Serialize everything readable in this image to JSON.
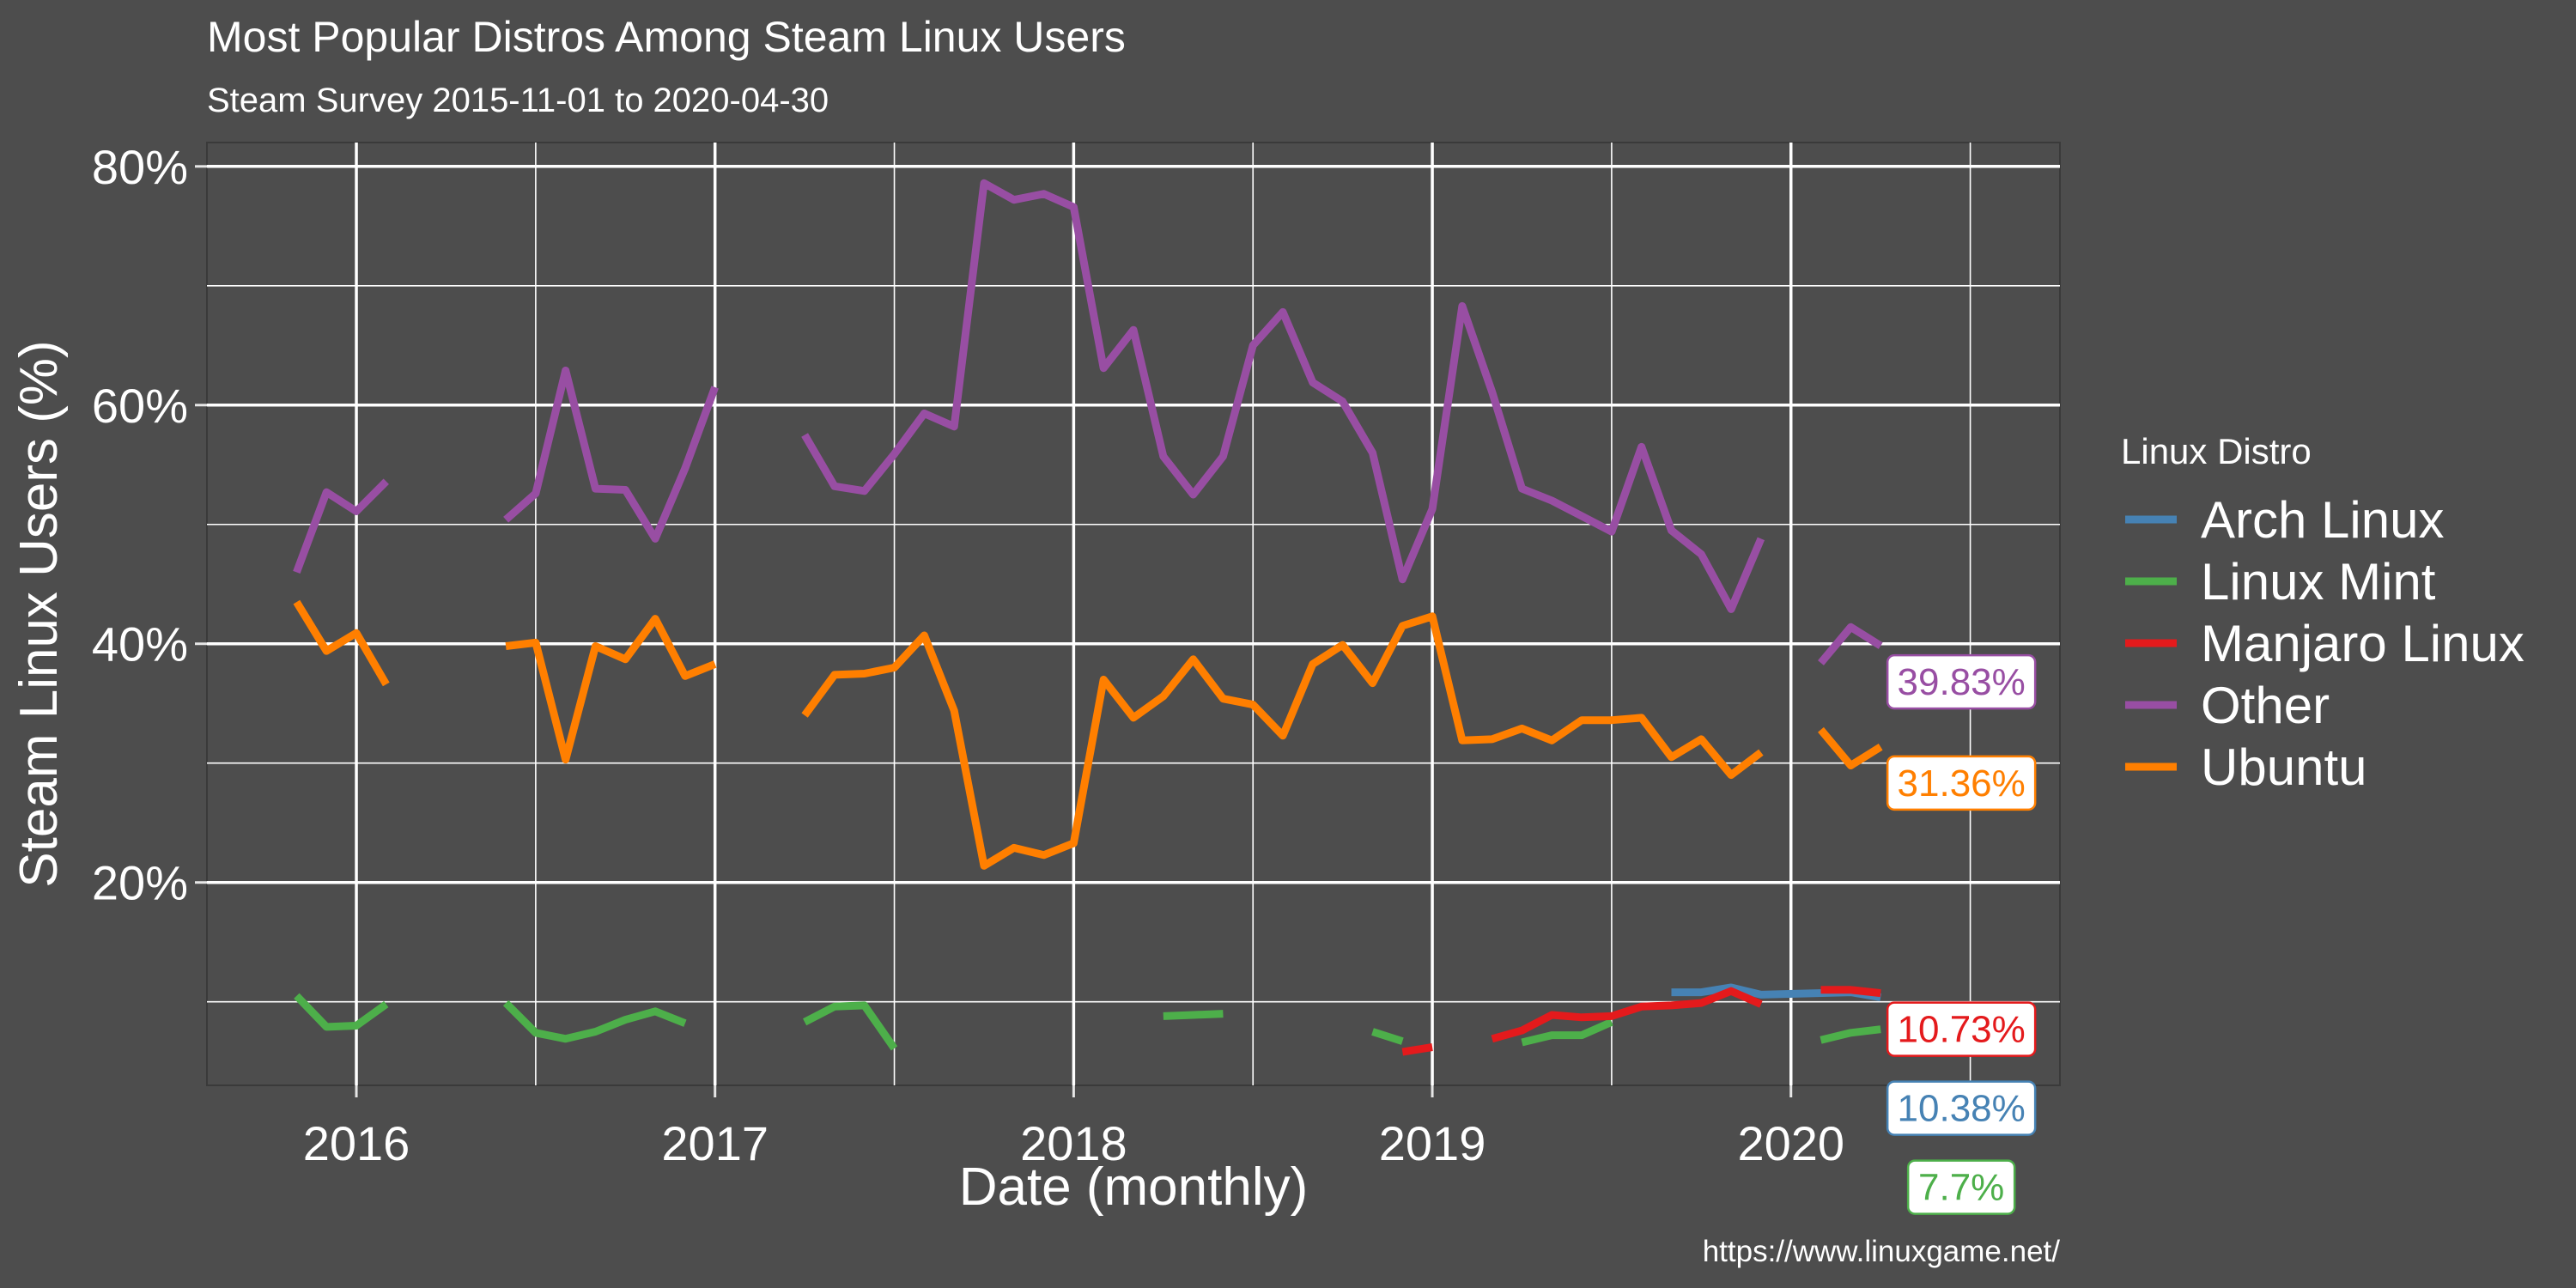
{
  "chart_data": {
    "type": "line",
    "title": "Most Popular Distros Among Steam Linux Users",
    "subtitle": "Steam Survey 2015-11-01 to 2020-04-30",
    "xlabel": "Date (monthly)",
    "ylabel": "Steam Linux Users (%)",
    "caption": "https://www.linuxgame.net/",
    "xlim": [
      "2015-08",
      "2020-10"
    ],
    "ylim": [
      3,
      82
    ],
    "x_ticks": [
      {
        "value": "2016-01",
        "label": "2016"
      },
      {
        "value": "2017-01",
        "label": "2017"
      },
      {
        "value": "2018-01",
        "label": "2018"
      },
      {
        "value": "2019-01",
        "label": "2019"
      },
      {
        "value": "2020-01",
        "label": "2020"
      }
    ],
    "y_ticks": [
      {
        "value": 20,
        "label": "20%"
      },
      {
        "value": 40,
        "label": "40%"
      },
      {
        "value": 60,
        "label": "60%"
      },
      {
        "value": 80,
        "label": "80%"
      }
    ],
    "grid": true,
    "legend_title": "Linux Distro",
    "legend_position": "right",
    "series": [
      {
        "name": "Arch Linux",
        "color": "#4682b4",
        "end_label": "10.38%",
        "points": [
          [
            "2019-09",
            10.8
          ],
          [
            "2019-10",
            10.8
          ],
          [
            "2019-11",
            11.2
          ],
          [
            "2019-12",
            10.6
          ],
          [
            "2020-03",
            10.8
          ],
          [
            "2020-04",
            10.38
          ]
        ]
      },
      {
        "name": "Linux Mint",
        "color": "#4daf4a",
        "end_label": "7.7%",
        "points": [
          [
            "2015-11",
            10.5
          ],
          [
            "2015-12",
            7.9
          ],
          [
            "2016-01",
            8.0
          ],
          [
            "2016-02",
            9.8
          ],
          null,
          [
            "2016-06",
            9.9
          ],
          [
            "2016-07",
            7.4
          ],
          [
            "2016-08",
            6.9
          ],
          [
            "2016-09",
            7.5
          ],
          [
            "2016-10",
            8.5
          ],
          [
            "2016-11",
            9.2
          ],
          [
            "2016-12",
            8.2
          ],
          null,
          [
            "2017-04",
            8.3
          ],
          [
            "2017-05",
            9.6
          ],
          [
            "2017-06",
            9.7
          ],
          [
            "2017-07",
            6.1
          ],
          null,
          [
            "2018-04",
            8.8
          ],
          [
            "2018-05",
            8.9
          ],
          [
            "2018-06",
            9.0
          ],
          null,
          [
            "2018-11",
            7.5
          ],
          [
            "2018-12",
            6.7
          ],
          null,
          [
            "2019-04",
            6.6
          ],
          [
            "2019-05",
            7.2
          ],
          [
            "2019-06",
            7.2
          ],
          [
            "2019-07",
            8.3
          ],
          null,
          [
            "2020-02",
            6.8
          ],
          [
            "2020-03",
            7.4
          ],
          [
            "2020-04",
            7.7
          ]
        ]
      },
      {
        "name": "Manjaro Linux",
        "color": "#e41a1c",
        "end_label": "10.73%",
        "points": [
          [
            "2018-12",
            5.8
          ],
          [
            "2019-01",
            6.2
          ],
          null,
          [
            "2019-03",
            6.9
          ],
          [
            "2019-04",
            7.6
          ],
          [
            "2019-05",
            8.9
          ],
          [
            "2019-06",
            8.7
          ],
          [
            "2019-07",
            8.8
          ],
          [
            "2019-08",
            9.6
          ],
          [
            "2019-09",
            9.7
          ],
          [
            "2019-10",
            9.9
          ],
          [
            "2019-11",
            10.9
          ],
          [
            "2019-12",
            9.8
          ],
          null,
          [
            "2020-02",
            11.0
          ],
          [
            "2020-03",
            11.0
          ],
          [
            "2020-04",
            10.73
          ]
        ]
      },
      {
        "name": "Other",
        "color": "#984ea3",
        "end_label": "39.83%",
        "points": [
          [
            "2015-11",
            46.0
          ],
          [
            "2015-12",
            52.7
          ],
          [
            "2016-01",
            51.1
          ],
          [
            "2016-02",
            53.6
          ],
          null,
          [
            "2016-06",
            50.4
          ],
          [
            "2016-07",
            52.6
          ],
          [
            "2016-08",
            62.9
          ],
          [
            "2016-09",
            53.0
          ],
          [
            "2016-10",
            52.9
          ],
          [
            "2016-11",
            48.8
          ],
          [
            "2016-12",
            54.7
          ],
          [
            "2017-01",
            61.5
          ],
          null,
          [
            "2017-04",
            57.5
          ],
          [
            "2017-05",
            53.2
          ],
          [
            "2017-06",
            52.8
          ],
          [
            "2017-07",
            55.9
          ],
          [
            "2017-08",
            59.3
          ],
          [
            "2017-09",
            58.2
          ],
          [
            "2017-10",
            78.6
          ],
          [
            "2017-11",
            77.2
          ],
          [
            "2017-12",
            77.7
          ],
          [
            "2018-01",
            76.6
          ],
          [
            "2018-02",
            63.1
          ],
          [
            "2018-03",
            66.3
          ],
          [
            "2018-04",
            55.7
          ],
          [
            "2018-05",
            52.5
          ],
          [
            "2018-06",
            55.7
          ],
          [
            "2018-07",
            65.0
          ],
          [
            "2018-08",
            67.8
          ],
          [
            "2018-09",
            61.9
          ],
          [
            "2018-10",
            60.3
          ],
          [
            "2018-11",
            56.0
          ],
          [
            "2018-12",
            45.4
          ],
          [
            "2019-01",
            51.3
          ],
          [
            "2019-02",
            68.3
          ],
          [
            "2019-03",
            61.1
          ],
          [
            "2019-04",
            53.0
          ],
          [
            "2019-05",
            52.0
          ],
          [
            "2019-06",
            50.7
          ],
          [
            "2019-07",
            49.4
          ],
          [
            "2019-08",
            56.5
          ],
          [
            "2019-09",
            49.5
          ],
          [
            "2019-10",
            47.5
          ],
          [
            "2019-11",
            42.9
          ],
          [
            "2019-12",
            48.8
          ],
          null,
          [
            "2020-02",
            38.4
          ],
          [
            "2020-03",
            41.4
          ],
          [
            "2020-04",
            39.83
          ]
        ]
      },
      {
        "name": "Ubuntu",
        "color": "#ff7f00",
        "end_label": "31.36%",
        "points": [
          [
            "2015-11",
            43.5
          ],
          [
            "2015-12",
            39.4
          ],
          [
            "2016-01",
            40.9
          ],
          [
            "2016-02",
            36.6
          ],
          null,
          [
            "2016-06",
            39.8
          ],
          [
            "2016-07",
            40.1
          ],
          [
            "2016-08",
            30.3
          ],
          [
            "2016-09",
            39.8
          ],
          [
            "2016-10",
            38.7
          ],
          [
            "2016-11",
            42.1
          ],
          [
            "2016-12",
            37.3
          ],
          [
            "2017-01",
            38.3
          ],
          null,
          [
            "2017-04",
            34.0
          ],
          [
            "2017-05",
            37.4
          ],
          [
            "2017-06",
            37.5
          ],
          [
            "2017-07",
            38.0
          ],
          [
            "2017-08",
            40.7
          ],
          [
            "2017-09",
            34.4
          ],
          [
            "2017-10",
            21.4
          ],
          [
            "2017-11",
            22.9
          ],
          [
            "2017-12",
            22.3
          ],
          [
            "2018-01",
            23.3
          ],
          [
            "2018-02",
            37.0
          ],
          [
            "2018-03",
            33.8
          ],
          [
            "2018-04",
            35.6
          ],
          [
            "2018-05",
            38.7
          ],
          [
            "2018-06",
            35.4
          ],
          [
            "2018-07",
            34.9
          ],
          [
            "2018-08",
            32.3
          ],
          [
            "2018-09",
            38.3
          ],
          [
            "2018-10",
            39.9
          ],
          [
            "2018-11",
            36.7
          ],
          [
            "2018-12",
            41.5
          ],
          [
            "2019-01",
            42.3
          ],
          [
            "2019-02",
            31.9
          ],
          [
            "2019-03",
            32.0
          ],
          [
            "2019-04",
            32.9
          ],
          [
            "2019-05",
            31.9
          ],
          [
            "2019-06",
            33.6
          ],
          [
            "2019-07",
            33.6
          ],
          [
            "2019-08",
            33.8
          ],
          [
            "2019-09",
            30.5
          ],
          [
            "2019-10",
            32.0
          ],
          [
            "2019-11",
            29.0
          ],
          [
            "2019-12",
            30.9
          ],
          null,
          [
            "2020-02",
            32.8
          ],
          [
            "2020-03",
            29.8
          ],
          [
            "2020-04",
            31.36
          ]
        ]
      }
    ]
  }
}
